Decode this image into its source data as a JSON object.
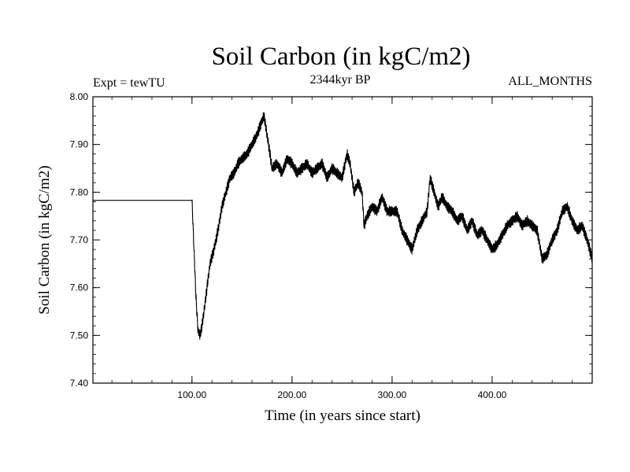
{
  "chart_data": {
    "type": "line",
    "title": "Soil Carbon (in kgC/m2)",
    "left_label": "Expt = tewTU",
    "center_label": "2344kyr BP",
    "right_label": "ALL_MONTHS",
    "xlabel": "Time (in years since start)",
    "ylabel": "Soil Carbon (in kgC/m2)",
    "xlim": [
      1,
      500
    ],
    "ylim": [
      7.4,
      8.0
    ],
    "x_tick_labels": [
      {
        "value": 100,
        "label": "100.00"
      },
      {
        "value": 200,
        "label": "200.00"
      },
      {
        "value": 300,
        "label": "300.00"
      },
      {
        "value": 400,
        "label": "400.00"
      }
    ],
    "y_tick_labels": [
      {
        "value": 7.4,
        "label": "7.40"
      },
      {
        "value": 7.5,
        "label": "7.50"
      },
      {
        "value": 7.6,
        "label": "7.60"
      },
      {
        "value": 7.7,
        "label": "7.70"
      },
      {
        "value": 7.8,
        "label": "7.80"
      },
      {
        "value": 7.9,
        "label": "7.90"
      },
      {
        "value": 8.0,
        "label": "8.00"
      }
    ],
    "series": [
      {
        "name": "Soil Carbon",
        "noise_amplitude": 0.012,
        "x": [
          1,
          100,
          100.5,
          102,
          104,
          106,
          108,
          110,
          112,
          115,
          118,
          122,
          126,
          130,
          134,
          138,
          142,
          146,
          150,
          155,
          160,
          165,
          170,
          172,
          175,
          178,
          180,
          185,
          190,
          195,
          200,
          205,
          210,
          215,
          220,
          225,
          230,
          235,
          240,
          245,
          250,
          255,
          258,
          262,
          266,
          270,
          272,
          275,
          280,
          285,
          290,
          295,
          300,
          305,
          310,
          315,
          320,
          325,
          330,
          335,
          338,
          342,
          346,
          350,
          355,
          360,
          365,
          370,
          375,
          380,
          385,
          390,
          395,
          400,
          405,
          410,
          415,
          420,
          425,
          430,
          435,
          440,
          445,
          450,
          455,
          460,
          465,
          470,
          475,
          480,
          485,
          490,
          495,
          500
        ],
        "values": [
          7.783,
          7.783,
          7.76,
          7.68,
          7.58,
          7.51,
          7.5,
          7.52,
          7.55,
          7.6,
          7.65,
          7.68,
          7.72,
          7.77,
          7.8,
          7.83,
          7.84,
          7.86,
          7.87,
          7.88,
          7.9,
          7.92,
          7.95,
          7.96,
          7.92,
          7.88,
          7.85,
          7.86,
          7.84,
          7.87,
          7.86,
          7.84,
          7.85,
          7.86,
          7.84,
          7.85,
          7.86,
          7.83,
          7.85,
          7.84,
          7.83,
          7.88,
          7.86,
          7.8,
          7.82,
          7.8,
          7.73,
          7.75,
          7.77,
          7.76,
          7.79,
          7.76,
          7.76,
          7.76,
          7.72,
          7.7,
          7.68,
          7.72,
          7.74,
          7.76,
          7.83,
          7.8,
          7.77,
          7.79,
          7.77,
          7.76,
          7.74,
          7.75,
          7.72,
          7.74,
          7.71,
          7.72,
          7.7,
          7.68,
          7.69,
          7.71,
          7.73,
          7.74,
          7.75,
          7.73,
          7.74,
          7.73,
          7.72,
          7.66,
          7.67,
          7.7,
          7.72,
          7.76,
          7.77,
          7.74,
          7.72,
          7.73,
          7.7,
          7.66
        ]
      }
    ]
  }
}
